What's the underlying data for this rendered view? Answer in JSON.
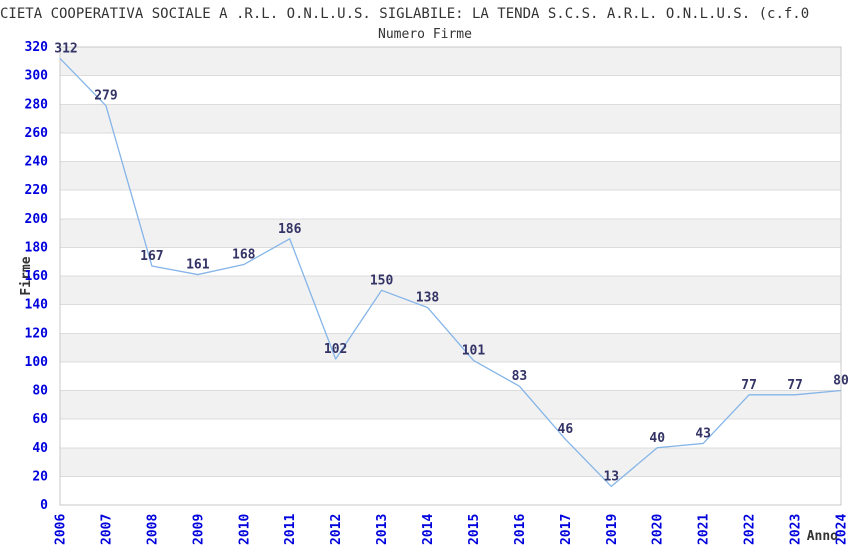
{
  "header": {
    "title": "CIETA COOPERATIVA SOCIALE A .R.L. O.N.L.U.S. SIGLABILE: LA TENDA S.C.S. A.R.L. O.N.L.U.S. (c.f.0"
  },
  "chart_data": {
    "type": "line",
    "title": "Numero Firme",
    "xlabel": "Anno",
    "ylabel": "Firme",
    "categories": [
      "2006",
      "2007",
      "2008",
      "2009",
      "2010",
      "2011",
      "2012",
      "2013",
      "2014",
      "2015",
      "2016",
      "2017",
      "2019",
      "2020",
      "2021",
      "2022",
      "2023",
      "2024"
    ],
    "values": [
      312,
      279,
      167,
      161,
      168,
      186,
      102,
      150,
      138,
      101,
      83,
      46,
      13,
      40,
      43,
      77,
      77,
      80
    ],
    "ylim": [
      0,
      320
    ],
    "ytick_step": 20,
    "grid": true,
    "legend_position": "none",
    "data_labels_visible": true,
    "colors": {
      "line": "#85b5e8",
      "tick_label": "#0000dd",
      "data_label": "#333366",
      "band": "#f1f1f1",
      "gridline": "#dcdcdc",
      "border": "#c9c9c9",
      "text": "#333333"
    }
  }
}
